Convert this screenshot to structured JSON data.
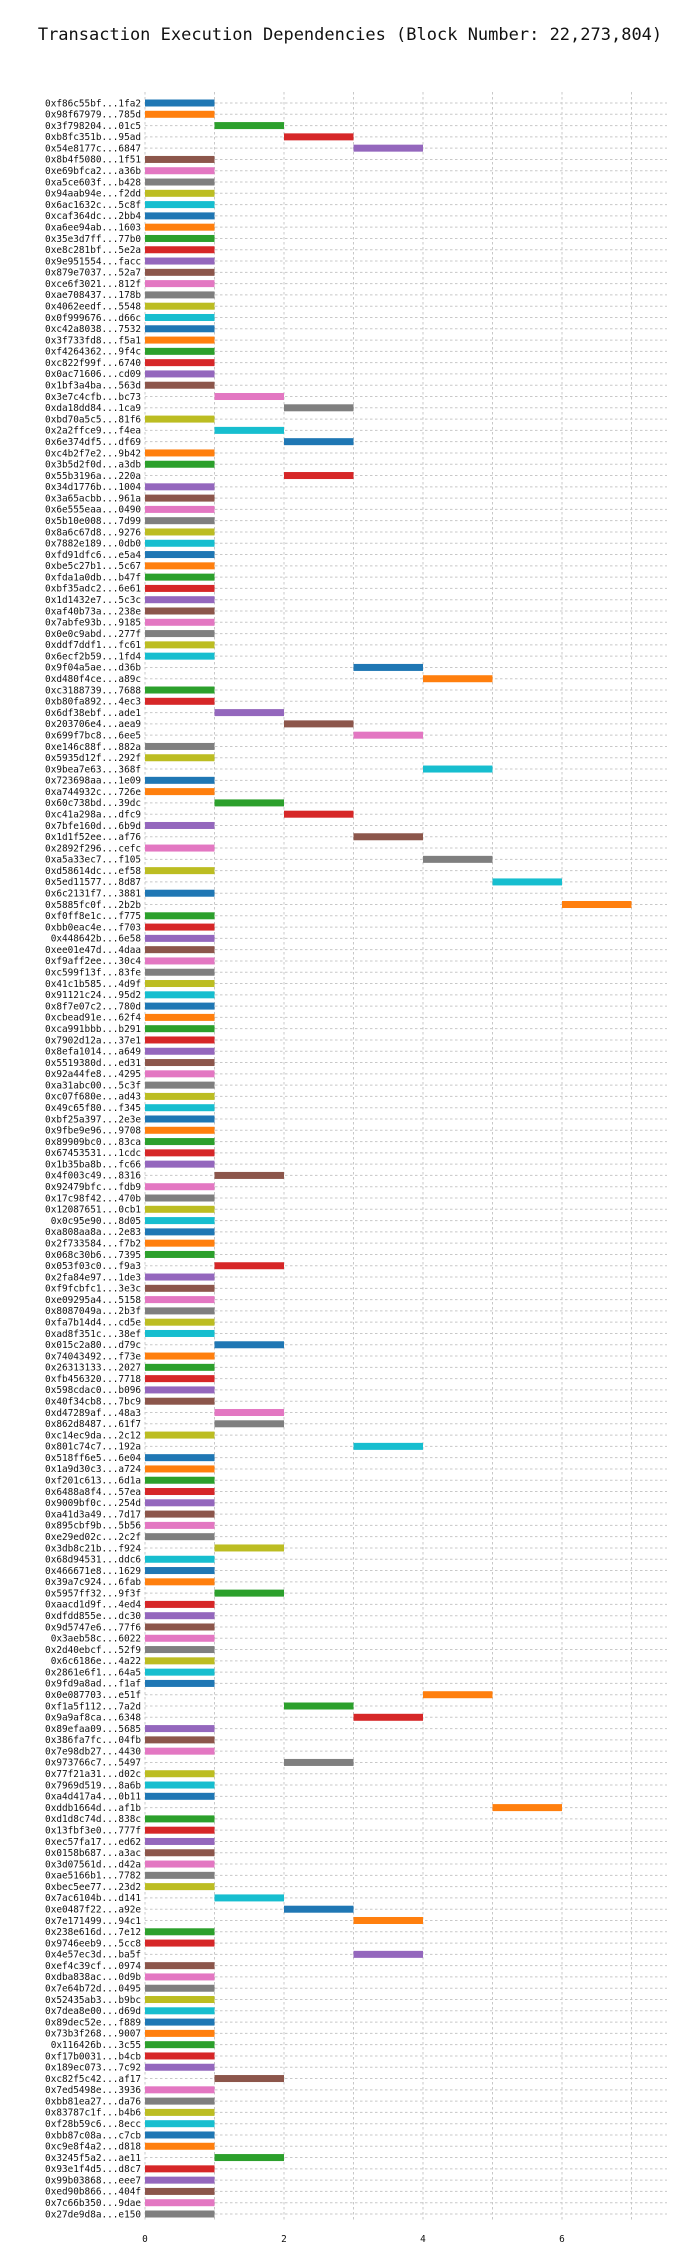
{
  "chart_data": {
    "type": "bar",
    "orientation": "horizontal",
    "bar_style": "gantt",
    "title": "Transaction Execution Dependencies (Block Number: 22,273,804)",
    "xlabel": "",
    "ylabel": "",
    "xlim": [
      0,
      7.4
    ],
    "x_ticks": [
      0,
      2,
      4,
      6
    ],
    "grid": true,
    "legend": "none",
    "palette": [
      "#1f77b4",
      "#ff7f0e",
      "#2ca02c",
      "#d62728",
      "#9467bd",
      "#8c564b",
      "#e377c2",
      "#7f7f7f",
      "#bcbd22",
      "#17becf"
    ],
    "tasks": [
      {
        "label": "0xf86c55bf...1fa2",
        "start": 0,
        "end": 1
      },
      {
        "label": "0x98f67979...785d",
        "start": 0,
        "end": 1
      },
      {
        "label": "0x3f798204...01c5",
        "start": 1,
        "end": 2
      },
      {
        "label": "0xb8fc351b...95ad",
        "start": 2,
        "end": 3
      },
      {
        "label": "0x54e8177c...6847",
        "start": 3,
        "end": 4
      },
      {
        "label": "0x8b4f5080...1f51",
        "start": 0,
        "end": 1
      },
      {
        "label": "0xe69bfca2...a36b",
        "start": 0,
        "end": 1
      },
      {
        "label": "0xa5ce603f...b428",
        "start": 0,
        "end": 1
      },
      {
        "label": "0x94aab94e...f2dd",
        "start": 0,
        "end": 1
      },
      {
        "label": "0x6ac1632c...5c8f",
        "start": 0,
        "end": 1
      },
      {
        "label": "0xcaf364dc...2bb4",
        "start": 0,
        "end": 1
      },
      {
        "label": "0xa6ee94ab...1603",
        "start": 0,
        "end": 1
      },
      {
        "label": "0x35e3d7ff...77b0",
        "start": 0,
        "end": 1
      },
      {
        "label": "0xe8c281bf...5e2a",
        "start": 0,
        "end": 1
      },
      {
        "label": "0x9e951554...facc",
        "start": 0,
        "end": 1
      },
      {
        "label": "0x879e7037...52a7",
        "start": 0,
        "end": 1
      },
      {
        "label": "0xce6f3021...812f",
        "start": 0,
        "end": 1
      },
      {
        "label": "0xae708437...178b",
        "start": 0,
        "end": 1
      },
      {
        "label": "0x4062eedf...5548",
        "start": 0,
        "end": 1
      },
      {
        "label": "0x0f999676...d66c",
        "start": 0,
        "end": 1
      },
      {
        "label": "0xc42a8038...7532",
        "start": 0,
        "end": 1
      },
      {
        "label": "0x3f733fd8...f5a1",
        "start": 0,
        "end": 1
      },
      {
        "label": "0xf4264362...9f4c",
        "start": 0,
        "end": 1
      },
      {
        "label": "0xc822f99f...6740",
        "start": 0,
        "end": 1
      },
      {
        "label": "0x0ac71606...cd09",
        "start": 0,
        "end": 1
      },
      {
        "label": "0x1bf3a4ba...563d",
        "start": 0,
        "end": 1
      },
      {
        "label": "0x3e7c4cfb...bc73",
        "start": 1,
        "end": 2
      },
      {
        "label": "0xda18dd84...1ca9",
        "start": 2,
        "end": 3
      },
      {
        "label": "0xbd70a5c5...81f6",
        "start": 0,
        "end": 1
      },
      {
        "label": "0x2a2ffce9...f4ea",
        "start": 1,
        "end": 2
      },
      {
        "label": "0x6e374df5...df69",
        "start": 2,
        "end": 3
      },
      {
        "label": "0xc4b2f7e2...9b42",
        "start": 0,
        "end": 1
      },
      {
        "label": "0x3b5d2f0d...a3db",
        "start": 0,
        "end": 1
      },
      {
        "label": "0x55b3196a...220a",
        "start": 2,
        "end": 3
      },
      {
        "label": "0x34d1776b...1004",
        "start": 0,
        "end": 1
      },
      {
        "label": "0x3a65acbb...961a",
        "start": 0,
        "end": 1
      },
      {
        "label": "0x6e555eaa...0490",
        "start": 0,
        "end": 1
      },
      {
        "label": "0x5b10e008...7d99",
        "start": 0,
        "end": 1
      },
      {
        "label": "0x8a6c67d8...9276",
        "start": 0,
        "end": 1
      },
      {
        "label": "0x7882e189...0db0",
        "start": 0,
        "end": 1
      },
      {
        "label": "0xfd91dfc6...e5a4",
        "start": 0,
        "end": 1
      },
      {
        "label": "0xbe5c27b1...5c67",
        "start": 0,
        "end": 1
      },
      {
        "label": "0xfda1a0db...b47f",
        "start": 0,
        "end": 1
      },
      {
        "label": "0xbf35adc2...6e61",
        "start": 0,
        "end": 1
      },
      {
        "label": "0x1d1432e7...5c3c",
        "start": 0,
        "end": 1
      },
      {
        "label": "0xaf40b73a...238e",
        "start": 0,
        "end": 1
      },
      {
        "label": "0x7abfe93b...9185",
        "start": 0,
        "end": 1
      },
      {
        "label": "0x0e0c9abd...277f",
        "start": 0,
        "end": 1
      },
      {
        "label": "0xddf7ddf1...fc61",
        "start": 0,
        "end": 1
      },
      {
        "label": "0x6ecf2b59...1fd4",
        "start": 0,
        "end": 1
      },
      {
        "label": "0x9f04a5ae...d36b",
        "start": 3,
        "end": 4
      },
      {
        "label": "0xd480f4ce...a89c",
        "start": 4,
        "end": 5
      },
      {
        "label": "0xc3188739...7688",
        "start": 0,
        "end": 1
      },
      {
        "label": "0xb80fa892...4ec3",
        "start": 0,
        "end": 1
      },
      {
        "label": "0x6df38ebf...ade1",
        "start": 1,
        "end": 2
      },
      {
        "label": "0x203706e4...aea9",
        "start": 2,
        "end": 3
      },
      {
        "label": "0x699f7bc8...6ee5",
        "start": 3,
        "end": 4
      },
      {
        "label": "0xe146c88f...882a",
        "start": 0,
        "end": 1
      },
      {
        "label": "0x5935d12f...292f",
        "start": 0,
        "end": 1
      },
      {
        "label": "0x9bea7e63...368f",
        "start": 4,
        "end": 5
      },
      {
        "label": "0x723698aa...1e09",
        "start": 0,
        "end": 1
      },
      {
        "label": "0xa744932c...726e",
        "start": 0,
        "end": 1
      },
      {
        "label": "0x60c738bd...39dc",
        "start": 1,
        "end": 2
      },
      {
        "label": "0xc41a298a...dfc9",
        "start": 2,
        "end": 3
      },
      {
        "label": "0x7bfe160d...6b9d",
        "start": 0,
        "end": 1
      },
      {
        "label": "0x1d1f52ee...af76",
        "start": 3,
        "end": 4
      },
      {
        "label": "0x2892f296...cefc",
        "start": 0,
        "end": 1
      },
      {
        "label": "0xa5a33ec7...f105",
        "start": 4,
        "end": 5
      },
      {
        "label": "0xd58614dc...ef58",
        "start": 0,
        "end": 1
      },
      {
        "label": "0x5ed11577...8d87",
        "start": 5,
        "end": 6
      },
      {
        "label": "0x6c2131f7...3881",
        "start": 0,
        "end": 1
      },
      {
        "label": "0x5885fc0f...2b2b",
        "start": 6,
        "end": 7
      },
      {
        "label": "0xf0ff8e1c...f775",
        "start": 0,
        "end": 1
      },
      {
        "label": "0xbb0eac4e...f703",
        "start": 0,
        "end": 1
      },
      {
        "label": "0x448642b...6e58",
        "start": 0,
        "end": 1
      },
      {
        "label": "0xee01e47d...4daa",
        "start": 0,
        "end": 1
      },
      {
        "label": "0xf9aff2ee...30c4",
        "start": 0,
        "end": 1
      },
      {
        "label": "0xc599f13f...83fe",
        "start": 0,
        "end": 1
      },
      {
        "label": "0x41c1b585...4d9f",
        "start": 0,
        "end": 1
      },
      {
        "label": "0x91121c24...95d2",
        "start": 0,
        "end": 1
      },
      {
        "label": "0x8f7e07c2...780d",
        "start": 0,
        "end": 1
      },
      {
        "label": "0xcbead91e...62f4",
        "start": 0,
        "end": 1
      },
      {
        "label": "0xca991bbb...b291",
        "start": 0,
        "end": 1
      },
      {
        "label": "0x7902d12a...37e1",
        "start": 0,
        "end": 1
      },
      {
        "label": "0x8efa1014...a649",
        "start": 0,
        "end": 1
      },
      {
        "label": "0x5519380d...ed31",
        "start": 0,
        "end": 1
      },
      {
        "label": "0x92a44fe8...4295",
        "start": 0,
        "end": 1
      },
      {
        "label": "0xa31abc00...5c3f",
        "start": 0,
        "end": 1
      },
      {
        "label": "0xc07f680e...ad43",
        "start": 0,
        "end": 1
      },
      {
        "label": "0x49c65f80...f345",
        "start": 0,
        "end": 1
      },
      {
        "label": "0xbf25a397...2e3e",
        "start": 0,
        "end": 1
      },
      {
        "label": "0x9fbe9e96...9708",
        "start": 0,
        "end": 1
      },
      {
        "label": "0x89909bc0...83ca",
        "start": 0,
        "end": 1
      },
      {
        "label": "0x67453531...1cdc",
        "start": 0,
        "end": 1
      },
      {
        "label": "0x1b35ba8b...fc66",
        "start": 0,
        "end": 1
      },
      {
        "label": "0x4f003c49...8316",
        "start": 1,
        "end": 2
      },
      {
        "label": "0x92479bfc...fdb9",
        "start": 0,
        "end": 1
      },
      {
        "label": "0x17c98f42...470b",
        "start": 0,
        "end": 1
      },
      {
        "label": "0x12087651...0cb1",
        "start": 0,
        "end": 1
      },
      {
        "label": "0x0c95e90...8d05",
        "start": 0,
        "end": 1
      },
      {
        "label": "0xa808aa8a...2e83",
        "start": 0,
        "end": 1
      },
      {
        "label": "0x2f733584...f7b2",
        "start": 0,
        "end": 1
      },
      {
        "label": "0x068c30b6...7395",
        "start": 0,
        "end": 1
      },
      {
        "label": "0x053f03c0...f9a3",
        "start": 1,
        "end": 2
      },
      {
        "label": "0x2fa84e97...1de3",
        "start": 0,
        "end": 1
      },
      {
        "label": "0xf9fcbfc1...3e3c",
        "start": 0,
        "end": 1
      },
      {
        "label": "0xe09295a4...5158",
        "start": 0,
        "end": 1
      },
      {
        "label": "0x8087049a...2b3f",
        "start": 0,
        "end": 1
      },
      {
        "label": "0xfa7b14d4...cd5e",
        "start": 0,
        "end": 1
      },
      {
        "label": "0xad8f351c...38ef",
        "start": 0,
        "end": 1
      },
      {
        "label": "0x015c2a80...d79c",
        "start": 1,
        "end": 2
      },
      {
        "label": "0x74043492...f73e",
        "start": 0,
        "end": 1
      },
      {
        "label": "0x26313133...2027",
        "start": 0,
        "end": 1
      },
      {
        "label": "0xfb456320...7718",
        "start": 0,
        "end": 1
      },
      {
        "label": "0x598cdac0...b096",
        "start": 0,
        "end": 1
      },
      {
        "label": "0x40f34cb8...7bc9",
        "start": 0,
        "end": 1
      },
      {
        "label": "0xd47289af...48a3",
        "start": 1,
        "end": 2
      },
      {
        "label": "0x862d8487...61f7",
        "start": 1,
        "end": 2
      },
      {
        "label": "0xc14ec9da...2c12",
        "start": 0,
        "end": 1
      },
      {
        "label": "0x801c74c7...192a",
        "start": 3,
        "end": 4
      },
      {
        "label": "0x518ff6e5...6e04",
        "start": 0,
        "end": 1
      },
      {
        "label": "0x1a9d30c3...a724",
        "start": 0,
        "end": 1
      },
      {
        "label": "0xf201c613...6d1a",
        "start": 0,
        "end": 1
      },
      {
        "label": "0x6488a8f4...57ea",
        "start": 0,
        "end": 1
      },
      {
        "label": "0x9009bf0c...254d",
        "start": 0,
        "end": 1
      },
      {
        "label": "0xa41d3a49...7d17",
        "start": 0,
        "end": 1
      },
      {
        "label": "0x895cbf9b...5b56",
        "start": 0,
        "end": 1
      },
      {
        "label": "0xe29ed02c...2c2f",
        "start": 0,
        "end": 1
      },
      {
        "label": "0x3db8c21b...f924",
        "start": 1,
        "end": 2
      },
      {
        "label": "0x68d94531...ddc6",
        "start": 0,
        "end": 1
      },
      {
        "label": "0x466671e8...1629",
        "start": 0,
        "end": 1
      },
      {
        "label": "0x39a7c924...6fab",
        "start": 0,
        "end": 1
      },
      {
        "label": "0x5957ff32...9f3f",
        "start": 1,
        "end": 2
      },
      {
        "label": "0xaacd1d9f...4ed4",
        "start": 0,
        "end": 1
      },
      {
        "label": "0xdfdd855e...dc30",
        "start": 0,
        "end": 1
      },
      {
        "label": "0x9d5747e6...77f6",
        "start": 0,
        "end": 1
      },
      {
        "label": "0x3aeb58c...6022",
        "start": 0,
        "end": 1
      },
      {
        "label": "0x2d40ebcf...52f9",
        "start": 0,
        "end": 1
      },
      {
        "label": "0x6c6186e...4a22",
        "start": 0,
        "end": 1
      },
      {
        "label": "0x2861e6f1...64a5",
        "start": 0,
        "end": 1
      },
      {
        "label": "0x9fd9a8ad...f1af",
        "start": 0,
        "end": 1
      },
      {
        "label": "0x0e087703...e51f",
        "start": 4,
        "end": 5
      },
      {
        "label": "0xf1a5f112...7a2d",
        "start": 2,
        "end": 3
      },
      {
        "label": "0x9a9af8ca...6348",
        "start": 3,
        "end": 4
      },
      {
        "label": "0x89efaa09...5685",
        "start": 0,
        "end": 1
      },
      {
        "label": "0x386fa7fc...04fb",
        "start": 0,
        "end": 1
      },
      {
        "label": "0x7e98db27...4430",
        "start": 0,
        "end": 1
      },
      {
        "label": "0x973766c7...5497",
        "start": 2,
        "end": 3
      },
      {
        "label": "0x77f21a31...d02c",
        "start": 0,
        "end": 1
      },
      {
        "label": "0x7969d519...8a6b",
        "start": 0,
        "end": 1
      },
      {
        "label": "0xa4d417a4...0b11",
        "start": 0,
        "end": 1
      },
      {
        "label": "0xddb1664d...af1b",
        "start": 5,
        "end": 6
      },
      {
        "label": "0xd1d8c74d...838c",
        "start": 0,
        "end": 1
      },
      {
        "label": "0x13fbf3e0...777f",
        "start": 0,
        "end": 1
      },
      {
        "label": "0xec57fa17...ed62",
        "start": 0,
        "end": 1
      },
      {
        "label": "0x0158b687...a3ac",
        "start": 0,
        "end": 1
      },
      {
        "label": "0x3d07561d...d42a",
        "start": 0,
        "end": 1
      },
      {
        "label": "0xae5166b1...7782",
        "start": 0,
        "end": 1
      },
      {
        "label": "0xbec5ee77...23d2",
        "start": 0,
        "end": 1
      },
      {
        "label": "0x7ac6104b...d141",
        "start": 1,
        "end": 2
      },
      {
        "label": "0xe0487f22...a92e",
        "start": 2,
        "end": 3
      },
      {
        "label": "0x7e171499...94c1",
        "start": 3,
        "end": 4
      },
      {
        "label": "0x238e616d...7e12",
        "start": 0,
        "end": 1
      },
      {
        "label": "0x9746eeb9...5cc8",
        "start": 0,
        "end": 1
      },
      {
        "label": "0x4e57ec3d...ba5f",
        "start": 3,
        "end": 4
      },
      {
        "label": "0xef4c39cf...0974",
        "start": 0,
        "end": 1
      },
      {
        "label": "0xdba838ac...0d9b",
        "start": 0,
        "end": 1
      },
      {
        "label": "0x7e64b72d...0495",
        "start": 0,
        "end": 1
      },
      {
        "label": "0x52435ab3...b9bc",
        "start": 0,
        "end": 1
      },
      {
        "label": "0x7dea8e00...d69d",
        "start": 0,
        "end": 1
      },
      {
        "label": "0x89dec52e...f889",
        "start": 0,
        "end": 1
      },
      {
        "label": "0x73b3f268...9007",
        "start": 0,
        "end": 1
      },
      {
        "label": "0x116426b...3c55",
        "start": 0,
        "end": 1
      },
      {
        "label": "0xf17b0031...b4cb",
        "start": 0,
        "end": 1
      },
      {
        "label": "0x189ec073...7c92",
        "start": 0,
        "end": 1
      },
      {
        "label": "0xc82f5c42...af17",
        "start": 1,
        "end": 2
      },
      {
        "label": "0x7ed5498e...3936",
        "start": 0,
        "end": 1
      },
      {
        "label": "0xbb81ea27...da76",
        "start": 0,
        "end": 1
      },
      {
        "label": "0x83787c1f...b4b6",
        "start": 0,
        "end": 1
      },
      {
        "label": "0xf28b59c6...8ecc",
        "start": 0,
        "end": 1
      },
      {
        "label": "0xbb87c08a...c7cb",
        "start": 0,
        "end": 1
      },
      {
        "label": "0xc9e8f4a2...d818",
        "start": 0,
        "end": 1
      },
      {
        "label": "0x3245f5a2...ae11",
        "start": 1,
        "end": 2
      },
      {
        "label": "0x93e1f4d5...d8c7",
        "start": 0,
        "end": 1
      },
      {
        "label": "0x99b03868...eee7",
        "start": 0,
        "end": 1
      },
      {
        "label": "0xed90b866...404f",
        "start": 0,
        "end": 1
      },
      {
        "label": "0x7c66b350...9dae",
        "start": 0,
        "end": 1
      },
      {
        "label": "0x27de9d8a...e150",
        "start": 0,
        "end": 1
      }
    ]
  }
}
